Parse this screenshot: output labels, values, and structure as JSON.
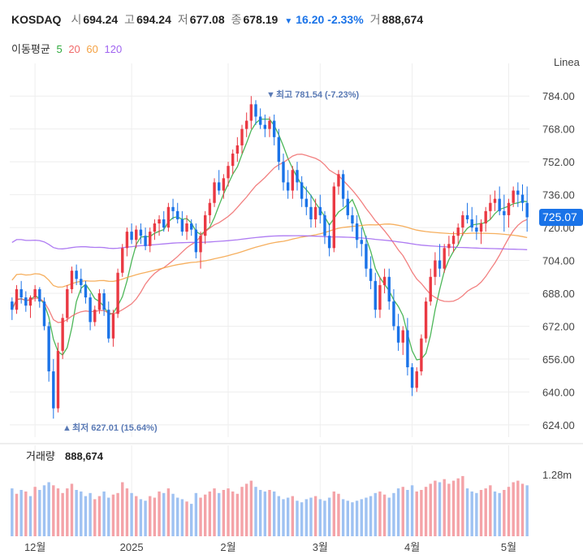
{
  "header": {
    "symbol": "KOSDAQ",
    "open_label": "시",
    "open_value": "694.24",
    "high_label": "고",
    "high_value": "694.24",
    "low_label": "저",
    "low_value": "677.08",
    "close_label": "종",
    "close_value": "678.19",
    "change_value": "16.20",
    "change_pct": "-2.33%",
    "volume_label": "거",
    "volume_value": "888,674"
  },
  "ma_legend": {
    "title": "이동평균",
    "items": [
      {
        "label": "5",
        "color": "#2eaa3c"
      },
      {
        "label": "20",
        "color": "#f06a6a"
      },
      {
        "label": "60",
        "color": "#f4a142"
      },
      {
        "label": "120",
        "color": "#a064f0"
      }
    ]
  },
  "scale_label": "Linea",
  "current_price_label": "725.07",
  "high_marker": "최고 781.54 (-7.23%)",
  "low_marker": "최저 627.01 (15.64%)",
  "volume_panel": {
    "label": "거래량",
    "value": "888,674",
    "axis_label": "1.28m"
  },
  "colors": {
    "up": "#ea3943",
    "down": "#1a73e8",
    "vol_up": "#f4a3a8",
    "vol_down": "#9fc2f2",
    "grid": "#eeeeee",
    "price_tag_bg": "#1a73e8"
  },
  "chart_data": {
    "type": "candlestick",
    "y_ticks": [
      "784.00",
      "768.00",
      "752.00",
      "736.00",
      "720.00",
      "704.00",
      "688.00",
      "672.00",
      "656.00",
      "640.00",
      "624.00"
    ],
    "y_range": [
      618,
      792
    ],
    "x_labels": [
      {
        "label": "12월",
        "index": 5
      },
      {
        "label": "2025",
        "index": 26
      },
      {
        "label": "2월",
        "index": 47
      },
      {
        "label": "3월",
        "index": 67
      },
      {
        "label": "4월",
        "index": 87
      },
      {
        "label": "5월",
        "index": 108
      }
    ],
    "candles": [
      [
        684,
        686,
        675,
        680
      ],
      [
        680,
        692,
        678,
        690
      ],
      [
        690,
        694,
        683,
        686
      ],
      [
        686,
        689,
        679,
        682
      ],
      [
        682,
        687,
        676,
        686
      ],
      [
        686,
        692,
        684,
        690
      ],
      [
        690,
        691,
        681,
        684
      ],
      [
        684,
        686,
        670,
        672
      ],
      [
        672,
        674,
        645,
        650
      ],
      [
        650,
        656,
        627,
        632
      ],
      [
        632,
        664,
        630,
        660
      ],
      [
        660,
        678,
        656,
        676
      ],
      [
        676,
        692,
        674,
        690
      ],
      [
        690,
        701,
        688,
        699
      ],
      [
        699,
        702,
        692,
        695
      ],
      [
        695,
        700,
        688,
        692
      ],
      [
        692,
        694,
        683,
        686
      ],
      [
        686,
        688,
        670,
        674
      ],
      [
        674,
        682,
        672,
        680
      ],
      [
        680,
        690,
        678,
        688
      ],
      [
        688,
        690,
        677,
        680
      ],
      [
        680,
        684,
        664,
        666
      ],
      [
        666,
        680,
        662,
        678
      ],
      [
        678,
        700,
        676,
        698
      ],
      [
        698,
        712,
        696,
        710
      ],
      [
        710,
        720,
        706,
        718
      ],
      [
        718,
        722,
        712,
        714
      ],
      [
        714,
        721,
        710,
        719
      ],
      [
        719,
        722,
        712,
        716
      ],
      [
        716,
        720,
        709,
        711
      ],
      [
        711,
        720,
        708,
        718
      ],
      [
        718,
        724,
        714,
        722
      ],
      [
        722,
        726,
        716,
        724
      ],
      [
        724,
        728,
        718,
        720
      ],
      [
        720,
        732,
        718,
        730
      ],
      [
        730,
        734,
        724,
        728
      ],
      [
        728,
        732,
        722,
        724
      ],
      [
        724,
        728,
        716,
        718
      ],
      [
        718,
        726,
        714,
        722
      ],
      [
        722,
        724,
        716,
        719
      ],
      [
        719,
        722,
        705,
        708
      ],
      [
        708,
        718,
        700,
        716
      ],
      [
        716,
        728,
        712,
        726
      ],
      [
        726,
        734,
        722,
        732
      ],
      [
        732,
        744,
        730,
        742
      ],
      [
        742,
        748,
        736,
        738
      ],
      [
        738,
        746,
        734,
        744
      ],
      [
        744,
        752,
        740,
        750
      ],
      [
        750,
        758,
        746,
        756
      ],
      [
        756,
        764,
        752,
        760
      ],
      [
        760,
        770,
        756,
        768
      ],
      [
        768,
        776,
        764,
        772
      ],
      [
        772,
        784,
        768,
        780
      ],
      [
        780,
        782,
        770,
        774
      ],
      [
        774,
        778,
        768,
        770
      ],
      [
        770,
        775,
        764,
        768
      ],
      [
        768,
        774,
        764,
        772
      ],
      [
        772,
        775,
        760,
        764
      ],
      [
        764,
        768,
        748,
        752
      ],
      [
        752,
        756,
        738,
        742
      ],
      [
        742,
        748,
        734,
        738
      ],
      [
        738,
        750,
        734,
        748
      ],
      [
        748,
        752,
        738,
        742
      ],
      [
        742,
        745,
        730,
        734
      ],
      [
        734,
        740,
        726,
        730
      ],
      [
        730,
        736,
        720,
        724
      ],
      [
        724,
        734,
        720,
        730
      ],
      [
        730,
        736,
        722,
        726
      ],
      [
        726,
        728,
        712,
        716
      ],
      [
        716,
        722,
        706,
        710
      ],
      [
        710,
        742,
        708,
        740
      ],
      [
        740,
        748,
        736,
        746
      ],
      [
        746,
        748,
        730,
        734
      ],
      [
        734,
        738,
        724,
        726
      ],
      [
        726,
        730,
        718,
        722
      ],
      [
        722,
        726,
        710,
        714
      ],
      [
        714,
        720,
        706,
        712
      ],
      [
        712,
        716,
        696,
        700
      ],
      [
        700,
        706,
        690,
        694
      ],
      [
        694,
        698,
        676,
        680
      ],
      [
        680,
        696,
        676,
        692
      ],
      [
        692,
        700,
        688,
        696
      ],
      [
        696,
        700,
        680,
        684
      ],
      [
        684,
        690,
        670,
        672
      ],
      [
        672,
        678,
        660,
        664
      ],
      [
        664,
        672,
        658,
        670
      ],
      [
        670,
        676,
        648,
        652
      ],
      [
        652,
        654,
        638,
        642
      ],
      [
        642,
        652,
        640,
        650
      ],
      [
        650,
        668,
        648,
        666
      ],
      [
        666,
        686,
        664,
        684
      ],
      [
        684,
        700,
        682,
        696
      ],
      [
        696,
        708,
        692,
        704
      ],
      [
        704,
        712,
        696,
        700
      ],
      [
        700,
        712,
        698,
        710
      ],
      [
        710,
        716,
        706,
        712
      ],
      [
        712,
        718,
        708,
        716
      ],
      [
        716,
        722,
        712,
        720
      ],
      [
        720,
        728,
        716,
        726
      ],
      [
        726,
        732,
        722,
        724
      ],
      [
        724,
        730,
        718,
        720
      ],
      [
        720,
        726,
        714,
        718
      ],
      [
        718,
        724,
        712,
        722
      ],
      [
        722,
        730,
        718,
        728
      ],
      [
        728,
        736,
        724,
        732
      ],
      [
        732,
        738,
        728,
        734
      ],
      [
        734,
        740,
        726,
        728
      ],
      [
        728,
        736,
        718,
        726
      ],
      [
        726,
        734,
        720,
        732
      ],
      [
        732,
        740,
        730,
        738
      ],
      [
        738,
        742,
        730,
        736
      ],
      [
        736,
        741,
        728,
        732
      ],
      [
        732,
        740,
        718,
        725
      ]
    ],
    "volumes": [
      [
        0.62,
        0
      ],
      [
        0.55,
        1
      ],
      [
        0.6,
        0
      ],
      [
        0.58,
        1
      ],
      [
        0.52,
        0
      ],
      [
        0.64,
        1
      ],
      [
        0.6,
        0
      ],
      [
        0.66,
        0
      ],
      [
        0.7,
        0
      ],
      [
        0.66,
        1
      ],
      [
        0.62,
        1
      ],
      [
        0.56,
        1
      ],
      [
        0.62,
        1
      ],
      [
        0.68,
        1
      ],
      [
        0.6,
        0
      ],
      [
        0.58,
        0
      ],
      [
        0.52,
        0
      ],
      [
        0.56,
        0
      ],
      [
        0.48,
        1
      ],
      [
        0.52,
        1
      ],
      [
        0.58,
        0
      ],
      [
        0.5,
        0
      ],
      [
        0.54,
        1
      ],
      [
        0.56,
        1
      ],
      [
        0.7,
        1
      ],
      [
        0.62,
        1
      ],
      [
        0.56,
        0
      ],
      [
        0.52,
        1
      ],
      [
        0.48,
        0
      ],
      [
        0.46,
        0
      ],
      [
        0.52,
        1
      ],
      [
        0.5,
        1
      ],
      [
        0.58,
        1
      ],
      [
        0.56,
        0
      ],
      [
        0.62,
        1
      ],
      [
        0.55,
        0
      ],
      [
        0.5,
        0
      ],
      [
        0.48,
        0
      ],
      [
        0.45,
        1
      ],
      [
        0.42,
        0
      ],
      [
        0.56,
        0
      ],
      [
        0.5,
        1
      ],
      [
        0.54,
        1
      ],
      [
        0.58,
        1
      ],
      [
        0.62,
        1
      ],
      [
        0.56,
        0
      ],
      [
        0.6,
        1
      ],
      [
        0.62,
        1
      ],
      [
        0.58,
        1
      ],
      [
        0.55,
        1
      ],
      [
        0.64,
        1
      ],
      [
        0.68,
        1
      ],
      [
        0.72,
        1
      ],
      [
        0.64,
        0
      ],
      [
        0.6,
        0
      ],
      [
        0.58,
        0
      ],
      [
        0.6,
        1
      ],
      [
        0.58,
        0
      ],
      [
        0.52,
        0
      ],
      [
        0.48,
        0
      ],
      [
        0.5,
        0
      ],
      [
        0.52,
        1
      ],
      [
        0.46,
        0
      ],
      [
        0.44,
        0
      ],
      [
        0.48,
        0
      ],
      [
        0.5,
        0
      ],
      [
        0.52,
        1
      ],
      [
        0.48,
        0
      ],
      [
        0.46,
        0
      ],
      [
        0.5,
        0
      ],
      [
        0.58,
        1
      ],
      [
        0.55,
        1
      ],
      [
        0.48,
        0
      ],
      [
        0.46,
        0
      ],
      [
        0.44,
        0
      ],
      [
        0.46,
        0
      ],
      [
        0.48,
        0
      ],
      [
        0.5,
        0
      ],
      [
        0.52,
        0
      ],
      [
        0.56,
        0
      ],
      [
        0.58,
        1
      ],
      [
        0.54,
        1
      ],
      [
        0.5,
        0
      ],
      [
        0.56,
        0
      ],
      [
        0.62,
        0
      ],
      [
        0.64,
        1
      ],
      [
        0.6,
        0
      ],
      [
        0.66,
        0
      ],
      [
        0.58,
        1
      ],
      [
        0.6,
        1
      ],
      [
        0.64,
        1
      ],
      [
        0.68,
        1
      ],
      [
        0.72,
        1
      ],
      [
        0.7,
        0
      ],
      [
        0.74,
        1
      ],
      [
        0.68,
        1
      ],
      [
        0.72,
        1
      ],
      [
        0.75,
        1
      ],
      [
        0.78,
        1
      ],
      [
        0.62,
        0
      ],
      [
        0.58,
        0
      ],
      [
        0.56,
        0
      ],
      [
        0.6,
        1
      ],
      [
        0.62,
        1
      ],
      [
        0.66,
        1
      ],
      [
        0.58,
        0
      ],
      [
        0.56,
        0
      ],
      [
        0.6,
        1
      ],
      [
        0.64,
        1
      ],
      [
        0.7,
        1
      ],
      [
        0.72,
        1
      ],
      [
        0.68,
        1
      ],
      [
        0.66,
        0
      ]
    ]
  }
}
